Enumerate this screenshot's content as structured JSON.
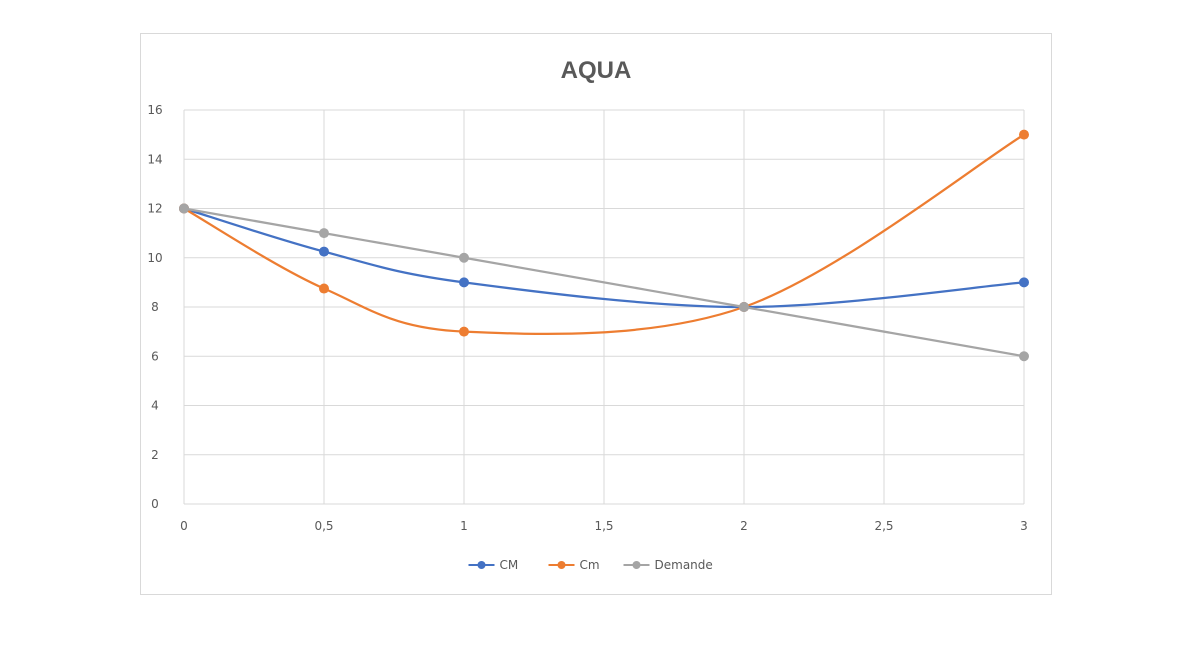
{
  "chart_data": {
    "type": "line",
    "title": "AQUA",
    "xlabel": "",
    "ylabel": "",
    "x": [
      0,
      0.5,
      1,
      2,
      3
    ],
    "xlim": [
      0,
      3
    ],
    "ylim": [
      0,
      16
    ],
    "x_ticks": [
      "0",
      "0,5",
      "1",
      "1,5",
      "2",
      "2,5",
      "3"
    ],
    "x_tick_values": [
      0,
      0.5,
      1,
      1.5,
      2,
      2.5,
      3
    ],
    "y_ticks": [
      "0",
      "2",
      "4",
      "6",
      "8",
      "10",
      "12",
      "14",
      "16"
    ],
    "y_tick_values": [
      0,
      2,
      4,
      6,
      8,
      10,
      12,
      14,
      16
    ],
    "grid": true,
    "smooth": true,
    "legend_position": "bottom",
    "series": [
      {
        "name": "CM",
        "color": "#4472c4",
        "values": [
          12,
          10.25,
          9,
          8,
          9
        ]
      },
      {
        "name": "Cm",
        "color": "#ed7d31",
        "values": [
          12,
          8.75,
          7,
          8,
          15
        ]
      },
      {
        "name": "Demande",
        "color": "#a5a5a5",
        "values": [
          12,
          11,
          10,
          8,
          6
        ]
      }
    ]
  }
}
